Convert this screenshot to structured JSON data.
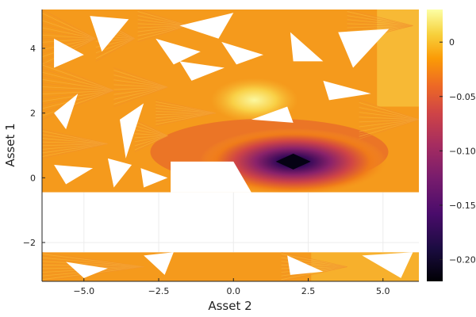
{
  "chart_data": {
    "type": "heatmap",
    "title": "",
    "xlabel": "Asset 2",
    "ylabel": "Asset 1",
    "xlim": [
      -6.4,
      6.2
    ],
    "ylim": [
      -3.2,
      5.2
    ],
    "x_ticks": [
      -5.0,
      -2.5,
      0.0,
      2.5,
      5.0
    ],
    "x_tick_labels": [
      "−5.0",
      "−2.5",
      "0.0",
      "2.5",
      "5.0"
    ],
    "y_ticks": [
      -2,
      0,
      2,
      4
    ],
    "y_tick_labels": [
      "−2",
      "0",
      "2",
      "4"
    ],
    "grid": true,
    "colormap": "inferno",
    "colorbar": {
      "range": [
        -0.22,
        0.03
      ],
      "ticks": [
        0,
        -0.05,
        -0.1,
        -0.15,
        -0.2
      ],
      "tick_labels": [
        "0",
        "−0.05",
        "−0.10",
        "−0.15",
        "−0.20"
      ]
    },
    "minimum": {
      "x": 2.0,
      "y": 0.5,
      "value": -0.22
    },
    "surface_regions": [
      {
        "name": "upper-band",
        "x": [
          -6.4,
          6.2
        ],
        "y": [
          -0.45,
          5.2
        ]
      },
      {
        "name": "lower-band",
        "x": [
          -6.4,
          6.2
        ],
        "y": [
          -3.2,
          -2.3
        ]
      }
    ],
    "empty_regions": [
      {
        "name": "central-gap",
        "x": [
          -6.4,
          6.2
        ],
        "y": [
          -2.3,
          -0.45
        ]
      },
      {
        "name": "notch",
        "polygon": [
          [
            -2.1,
            -0.45
          ],
          [
            -2.1,
            0.5
          ],
          [
            0.0,
            0.5
          ],
          [
            0.6,
            -0.45
          ]
        ]
      }
    ],
    "contour_values": [
      -0.2,
      -0.15,
      -0.1,
      -0.05,
      0.0,
      0.025
    ]
  }
}
